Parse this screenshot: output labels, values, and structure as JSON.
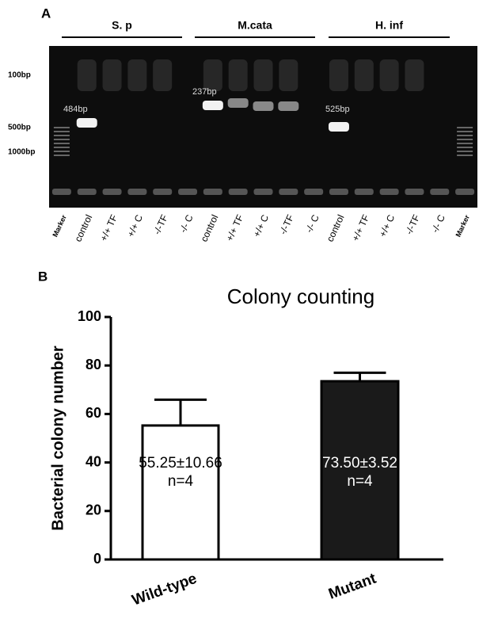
{
  "panel_a": {
    "label": "A",
    "groups": [
      "S. p",
      "M.cata",
      "H. inf"
    ],
    "markers": [
      "100bp",
      "500bp",
      "1000bp"
    ],
    "band_labels": [
      "484bp",
      "237bp",
      "525bp"
    ],
    "lanes": [
      "Marker",
      "control",
      "+/+ TF",
      "+/+ C",
      "-/-TF",
      "-/- C",
      "control",
      "+/+ TF",
      "+/+ C",
      "-/-TF",
      "-/- C",
      "control",
      "+/+ TF",
      "+/+ C",
      "-/-TF",
      "-/- C",
      "Marker"
    ]
  },
  "panel_b": {
    "label": "B"
  },
  "chart_data": {
    "type": "bar",
    "title": "Colony counting",
    "y_label": "Bacterial colony number",
    "categories": [
      "Wild-type",
      "Mutant"
    ],
    "values": [
      55.25,
      73.5
    ],
    "errors": [
      10.66,
      3.52
    ],
    "value_labels": [
      "55.25±10.66",
      "73.50±3.52"
    ],
    "n_labels": [
      "n=4",
      "n=4"
    ],
    "colors": [
      "#ffffff",
      "#1a1a1a"
    ],
    "ylim": [
      0,
      100
    ],
    "yticks": [
      0,
      20,
      40,
      60,
      80,
      100
    ]
  }
}
